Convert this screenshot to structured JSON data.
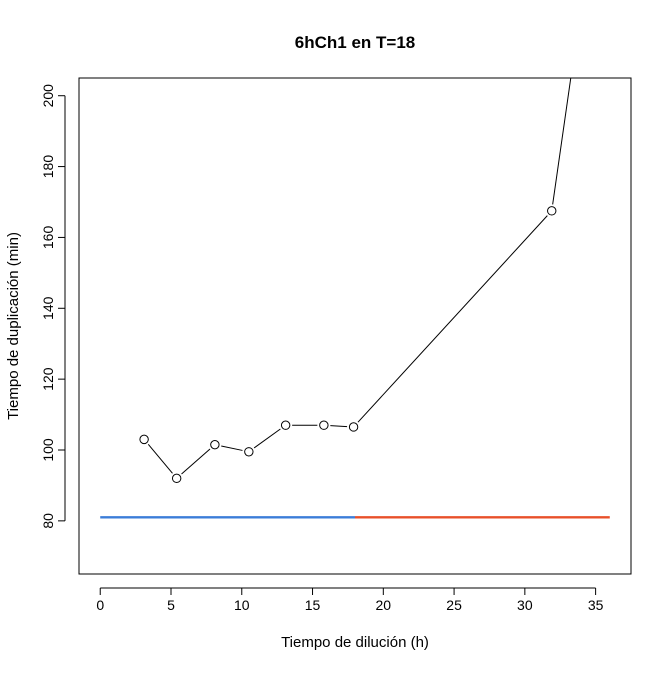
{
  "chart_data": {
    "type": "line",
    "title": "6hCh1 en T=18",
    "xlabel": "Tiempo de dilución (h)",
    "ylabel": "Tiempo de duplicación (min)",
    "xlim": [
      -1.5,
      37.5
    ],
    "ylim": [
      65,
      205
    ],
    "xticks": [
      0,
      5,
      10,
      15,
      20,
      25,
      30,
      35
    ],
    "yticks": [
      80,
      100,
      120,
      140,
      160,
      180,
      200
    ],
    "grid": false,
    "series": [
      {
        "marker": "open-circle",
        "color": "#000000",
        "x": [
          3.1,
          5.4,
          8.1,
          10.5,
          13.1,
          15.8,
          17.9,
          31.9,
          34.5
        ],
        "y": [
          103,
          92,
          101.5,
          99.5,
          107,
          107,
          106.5,
          167.5,
          240
        ],
        "marker_count": 8
      }
    ],
    "reference_lines": [
      {
        "x": [
          0,
          18
        ],
        "y": [
          81,
          81
        ],
        "color": "#3b7dd8"
      },
      {
        "x": [
          18,
          36
        ],
        "y": [
          81,
          81
        ],
        "color": "#e8502a"
      }
    ]
  }
}
